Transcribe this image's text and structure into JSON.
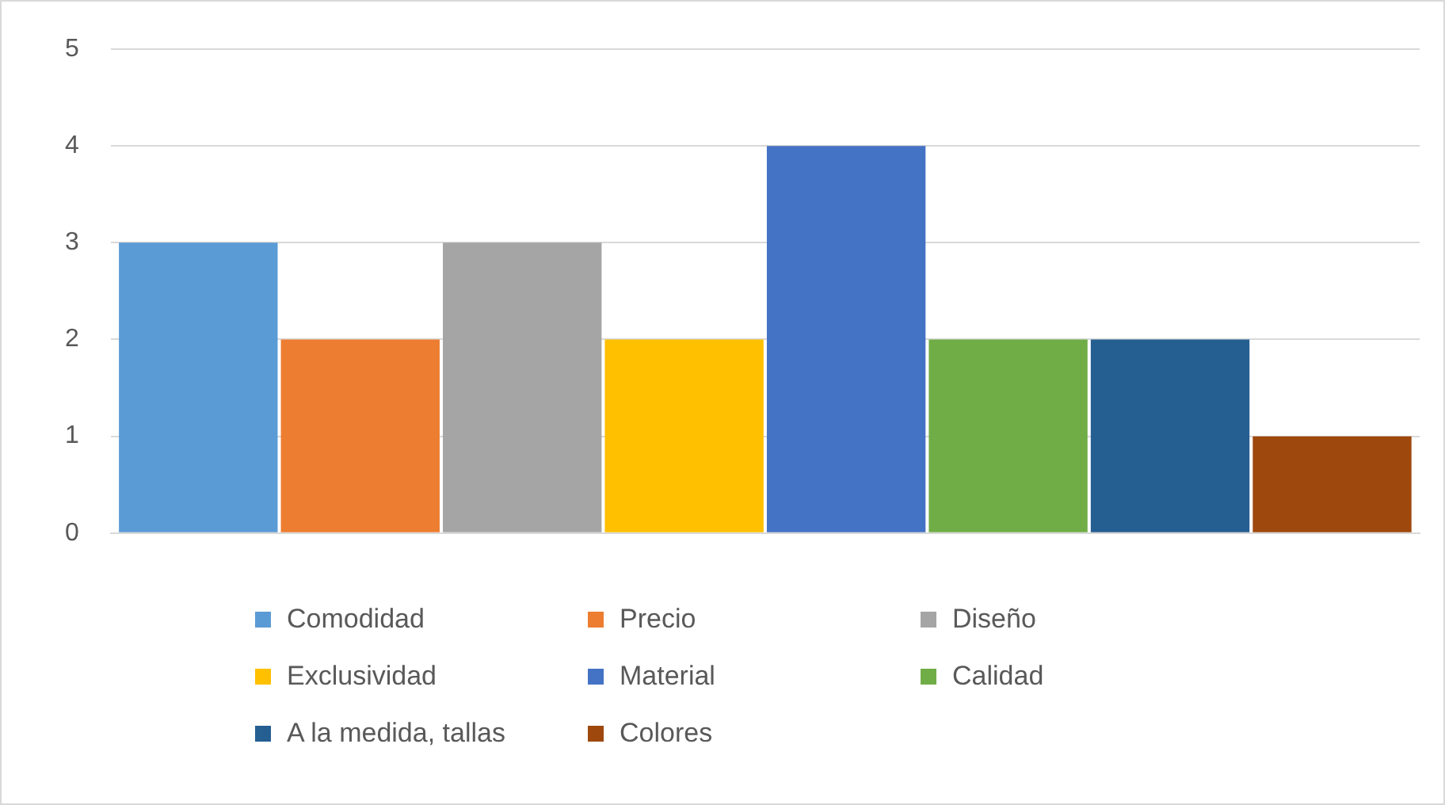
{
  "chart_data": {
    "type": "bar",
    "categories": [
      null
    ],
    "series": [
      {
        "name": "Comodidad",
        "color": "#5b9bd5",
        "values": [
          3
        ]
      },
      {
        "name": "Precio",
        "color": "#ed7d31",
        "values": [
          2
        ]
      },
      {
        "name": "Diseño",
        "color": "#a5a5a5",
        "values": [
          3
        ]
      },
      {
        "name": "Exclusividad",
        "color": "#ffc000",
        "values": [
          2
        ]
      },
      {
        "name": "Material",
        "color": "#4472c4",
        "values": [
          4
        ]
      },
      {
        "name": "Calidad",
        "color": "#70ad47",
        "values": [
          2
        ]
      },
      {
        "name": "A la medida, tallas",
        "color": "#255e91",
        "values": [
          2
        ]
      },
      {
        "name": "Colores",
        "color": "#9e480e",
        "values": [
          1
        ]
      }
    ],
    "ylim": [
      0,
      5
    ],
    "yticks": [
      0,
      1,
      2,
      3,
      4,
      5
    ],
    "grid": "y",
    "legend": "bottom"
  }
}
